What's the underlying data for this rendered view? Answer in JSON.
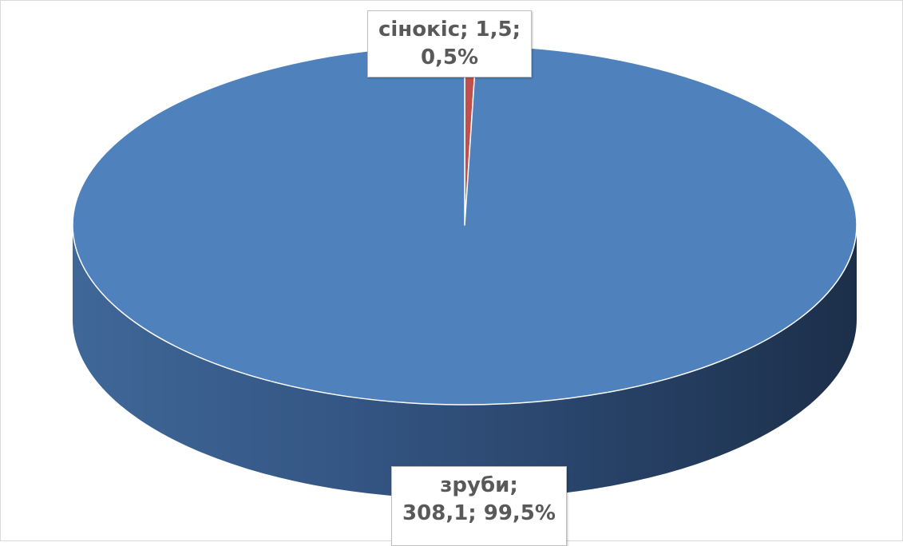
{
  "chart_data": {
    "type": "pie",
    "style": "3d",
    "title": "",
    "categories": [
      "сінокіс",
      "зруби"
    ],
    "values": [
      1.5,
      308.1
    ],
    "percents": [
      "0,5%",
      "99,5%"
    ],
    "colors": [
      "#c0504d",
      "#4f81bd"
    ],
    "legend": "none",
    "labels": [
      {
        "line1": "сінокіс; 1,5;",
        "line2": "0,5%"
      },
      {
        "line1": "зруби;",
        "line2": "308,1; 99,5%"
      }
    ]
  }
}
